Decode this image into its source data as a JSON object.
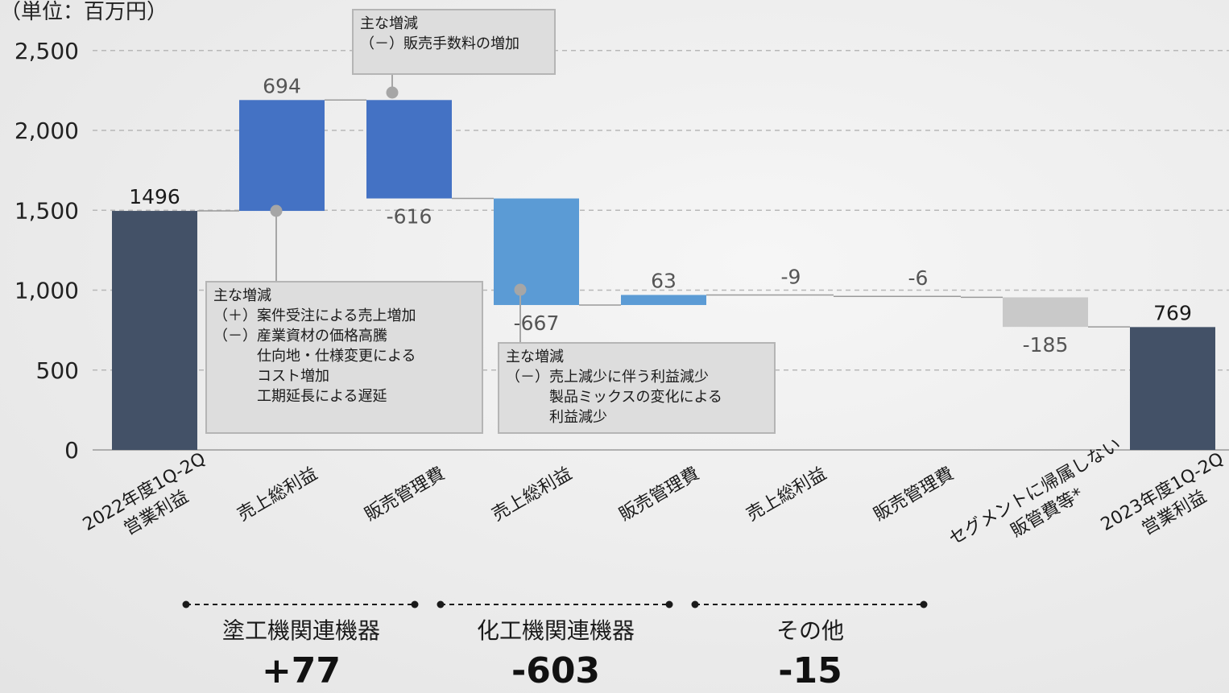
{
  "y_unit_label": "（単位：百万円）",
  "chart_data": {
    "type": "waterfall",
    "ylim": [
      0,
      2500
    ],
    "yticks": [
      "0",
      "500",
      "1,000",
      "1,500",
      "2,000",
      "2,500"
    ],
    "ytick_values": [
      0,
      500,
      1000,
      1500,
      2000,
      2500
    ],
    "grid": true,
    "steps": [
      {
        "category": [
          "2022年度1Q-2Q",
          "営業利益"
        ],
        "value": 1496,
        "label": "1496",
        "kind": "total",
        "color": "#435167"
      },
      {
        "category": [
          "売上総利益"
        ],
        "value": 694,
        "label": "694",
        "kind": "delta",
        "color": "#4472c4"
      },
      {
        "category": [
          "販売管理費"
        ],
        "value": -616,
        "label": "-616",
        "kind": "delta",
        "color": "#4472c4"
      },
      {
        "category": [
          "売上総利益"
        ],
        "value": -667,
        "label": "-667",
        "kind": "delta",
        "color": "#5b9bd5"
      },
      {
        "category": [
          "販売管理費"
        ],
        "value": 63,
        "label": "63",
        "kind": "delta",
        "color": "#5b9bd5"
      },
      {
        "category": [
          "売上総利益"
        ],
        "value": -9,
        "label": "-9",
        "kind": "delta",
        "color": "#bfbfbf"
      },
      {
        "category": [
          "販売管理費"
        ],
        "value": -6,
        "label": "-6",
        "kind": "delta",
        "color": "#bfbfbf"
      },
      {
        "category": [
          "セグメントに帰属しない",
          "販管費等*"
        ],
        "value": -185,
        "label": "-185",
        "kind": "delta",
        "color": "#c9c9c9"
      },
      {
        "category": [
          "2023年度1Q-2Q",
          "営業利益"
        ],
        "value": 769,
        "label": "769",
        "kind": "total",
        "color": "#435167"
      }
    ]
  },
  "notes": [
    {
      "title": "主な増減",
      "lines": [
        "（－）販売手数料の増加"
      ]
    },
    {
      "title": "主な増減",
      "lines": [
        "（＋）案件受注による売上増加",
        "（－）産業資材の価格高騰",
        "　　　仕向地・仕様変更による",
        "　　　コスト増加",
        "　　　工期延長による遅延"
      ]
    },
    {
      "title": "主な増減",
      "lines": [
        "（－）売上減少に伴う利益減少",
        "　　　製品ミックスの変化による",
        "　　　利益減少"
      ]
    }
  ],
  "segments": [
    {
      "label": "塗工機関連機器",
      "total": "+77"
    },
    {
      "label": "化工機関連機器",
      "total": "-603"
    },
    {
      "label": "その他",
      "total": "-15"
    }
  ],
  "colors": {
    "grid": "#b8b8b8",
    "connector": "#9a9a9a",
    "marker": "#a6a6a6",
    "text": "#222222",
    "value_label": "#555555"
  }
}
